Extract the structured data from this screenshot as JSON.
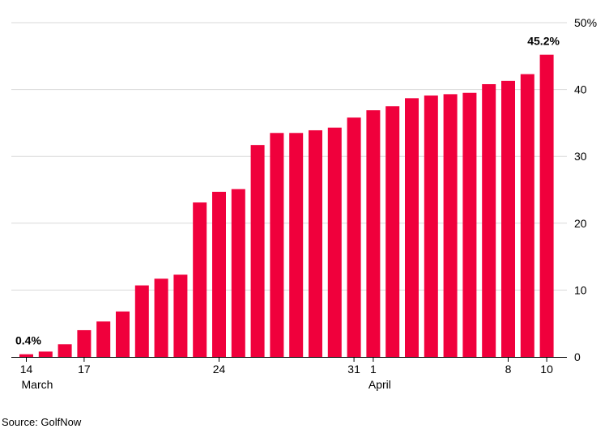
{
  "chart_data": {
    "type": "bar",
    "categories": [
      "14 Mar",
      "15 Mar",
      "16 Mar",
      "17 Mar",
      "18 Mar",
      "19 Mar",
      "20 Mar",
      "21 Mar",
      "22 Mar",
      "23 Mar",
      "24 Mar",
      "25 Mar",
      "26 Mar",
      "27 Mar",
      "28 Mar",
      "29 Mar",
      "30 Mar",
      "31 Mar",
      "1 Apr",
      "2 Apr",
      "3 Apr",
      "4 Apr",
      "5 Apr",
      "6 Apr",
      "7 Apr",
      "8 Apr",
      "9 Apr",
      "10 Apr"
    ],
    "values": [
      0.4,
      0.8,
      1.9,
      4.0,
      5.3,
      6.8,
      10.7,
      11.7,
      12.3,
      23.1,
      24.7,
      25.1,
      31.7,
      33.5,
      33.5,
      33.9,
      34.3,
      35.8,
      36.9,
      37.5,
      38.7,
      39.1,
      39.3,
      39.5,
      40.8,
      41.3,
      42.3,
      45.2
    ],
    "x_tick_labels": [
      {
        "index": 0,
        "label": "14"
      },
      {
        "index": 3,
        "label": "17"
      },
      {
        "index": 10,
        "label": "24"
      },
      {
        "index": 17,
        "label": "31"
      },
      {
        "index": 18,
        "label": "1"
      },
      {
        "index": 25,
        "label": "8"
      },
      {
        "index": 27,
        "label": "10"
      }
    ],
    "month_labels": [
      {
        "index": 0,
        "label": "March"
      },
      {
        "index": 18,
        "label": "April"
      }
    ],
    "y_ticks": [
      {
        "value": 0,
        "label": "0"
      },
      {
        "value": 10,
        "label": "10"
      },
      {
        "value": 20,
        "label": "20"
      },
      {
        "value": 30,
        "label": "30"
      },
      {
        "value": 40,
        "label": "40"
      },
      {
        "value": 50,
        "label": "50%"
      }
    ],
    "data_labels": [
      {
        "index": 0,
        "label": "0.4%"
      },
      {
        "index": 27,
        "label": "45.2%"
      }
    ],
    "ylim": [
      0,
      50
    ],
    "grid": true,
    "bar_color": "#f0003c",
    "grid_color": "#d9d9d9"
  },
  "source": "Source: GolfNow"
}
